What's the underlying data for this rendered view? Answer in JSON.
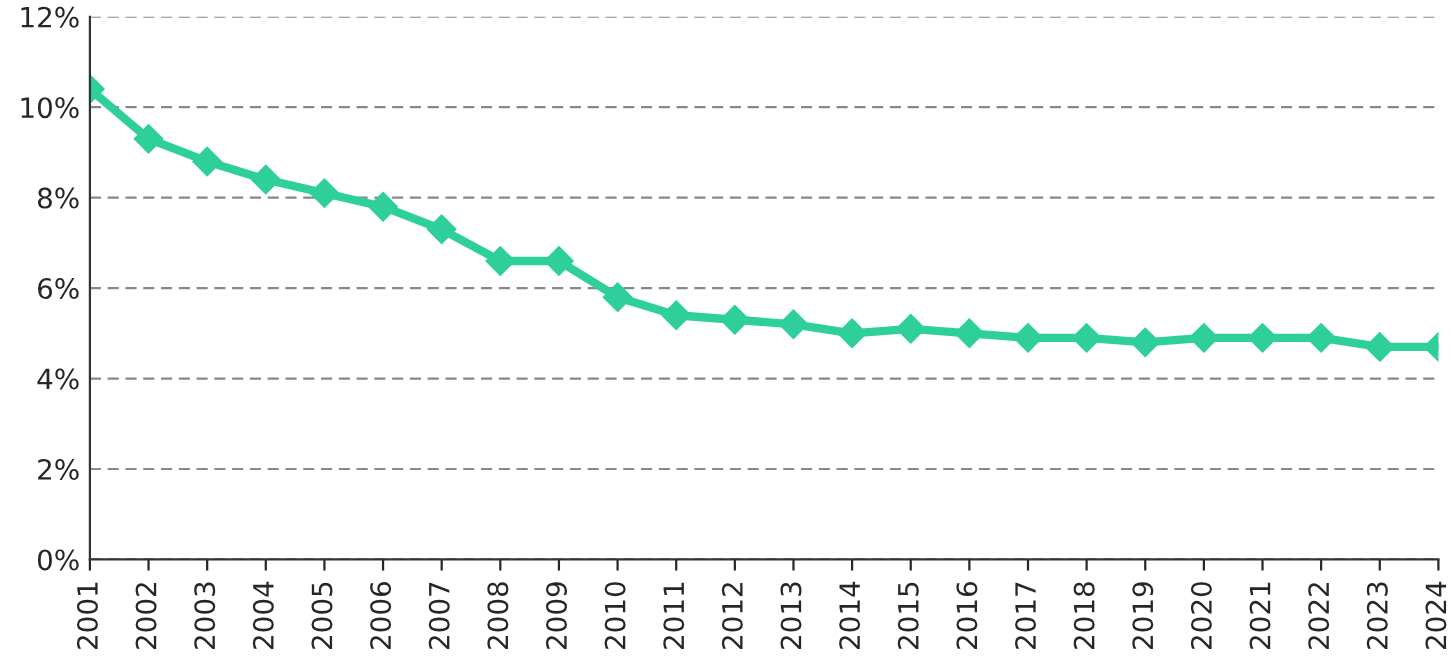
{
  "chart_data": {
    "type": "line",
    "categories": [
      "2001",
      "2002",
      "2003",
      "2004",
      "2005",
      "2006",
      "2007",
      "2008",
      "2009",
      "2010",
      "2011",
      "2012",
      "2013",
      "2014",
      "2015",
      "2016",
      "2017",
      "2018",
      "2019",
      "2020",
      "2021",
      "2022",
      "2023",
      "2024"
    ],
    "series": [
      {
        "color": "#2ecf9b",
        "values": [
          10.4,
          9.3,
          8.8,
          8.4,
          8.1,
          7.8,
          7.3,
          6.6,
          6.6,
          5.8,
          5.4,
          5.3,
          5.2,
          5.0,
          5.1,
          5.0,
          4.9,
          4.9,
          4.8,
          4.9,
          4.9,
          4.9,
          4.7,
          4.7
        ]
      }
    ],
    "ylim": [
      0,
      12
    ],
    "yticks": [
      {
        "value": 0,
        "label": "0%"
      },
      {
        "value": 2,
        "label": "2%"
      },
      {
        "value": 4,
        "label": "4%"
      },
      {
        "value": 6,
        "label": "6%"
      },
      {
        "value": 8,
        "label": "8%"
      },
      {
        "value": 10,
        "label": "10%"
      },
      {
        "value": 12,
        "label": "12%"
      }
    ],
    "grid": "y",
    "marker": "diamond",
    "line_style": "solid",
    "legend": false
  }
}
